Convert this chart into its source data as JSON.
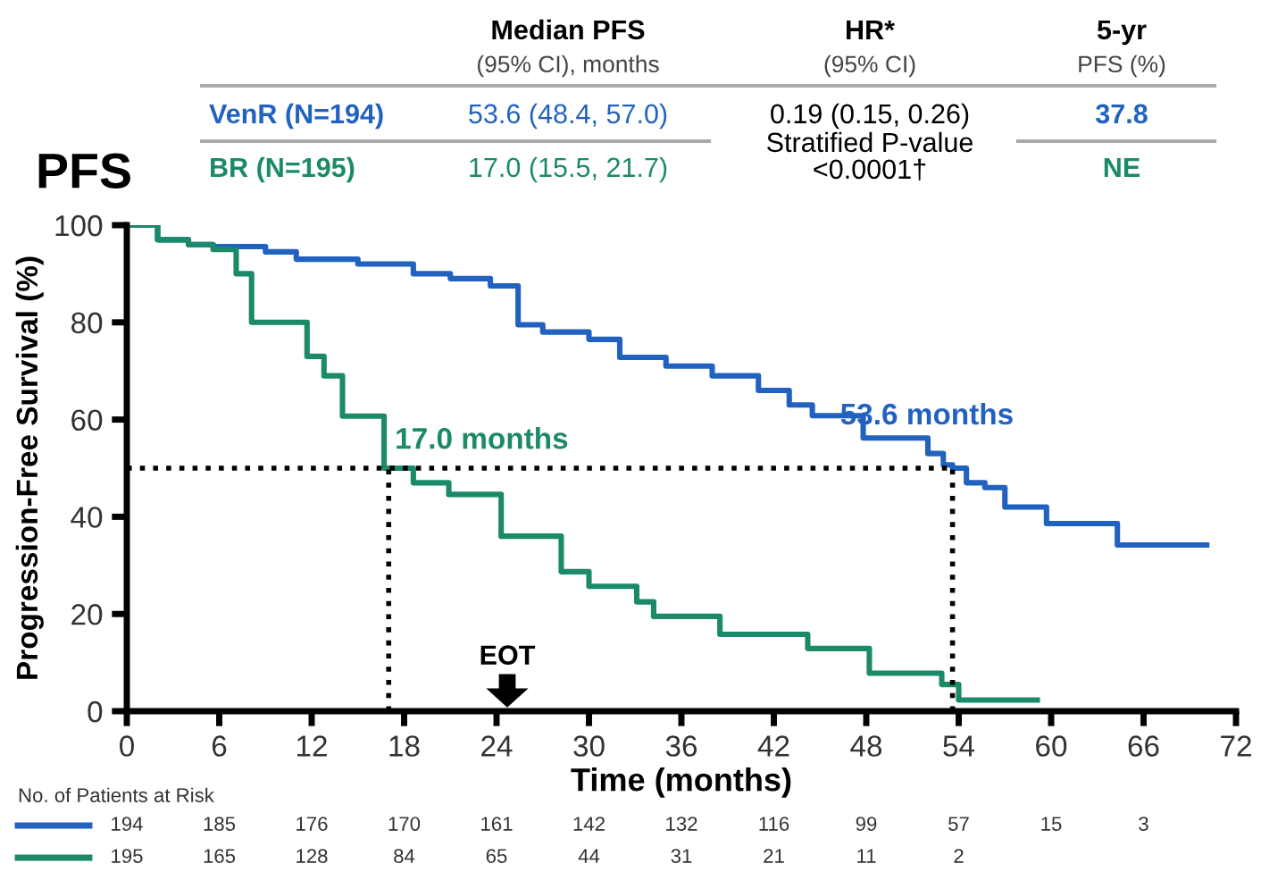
{
  "chart_data": {
    "type": "step",
    "title": "PFS",
    "xlabel": "Time (months)",
    "ylabel": "Progression-Free Survival (%)",
    "xlim": [
      0,
      72
    ],
    "xticks": [
      0,
      6,
      12,
      18,
      24,
      30,
      36,
      42,
      48,
      54,
      60,
      66,
      72
    ],
    "ylim": [
      0,
      100
    ],
    "yticks": [
      0,
      20,
      40,
      60,
      80,
      100
    ],
    "grid": false,
    "legend": false,
    "series": [
      {
        "name": "VenR (N=194)",
        "color": "#2162c0",
        "x": [
          0,
          2,
          4,
          5.6,
          9,
          11,
          15,
          18.6,
          21,
          23.6,
          25.4,
          27,
          30,
          32,
          35,
          38,
          41,
          43,
          44.5,
          47.8,
          52,
          53,
          53.6,
          54.5,
          55.7,
          57,
          59.7,
          64.3,
          70.1
        ],
        "values": [
          100,
          97,
          96,
          95.6,
          94.5,
          93,
          92,
          90,
          89,
          87.5,
          79.5,
          78,
          76.5,
          72.8,
          71,
          69,
          66,
          63,
          60.8,
          56.2,
          53,
          50.7,
          50,
          47,
          46,
          42,
          38.6,
          34.2,
          34.2
        ]
      },
      {
        "name": "BR (N=195)",
        "color": "#1b8a68",
        "x": [
          0,
          2,
          4,
          5.6,
          7.1,
          8.1,
          9,
          11.7,
          12.8,
          14,
          16.7,
          18.6,
          20.9,
          24.3,
          28.2,
          30,
          33.1,
          34.2,
          38.5,
          44.2,
          46.5,
          48.2,
          51.8,
          52.9,
          54,
          59.1
        ],
        "values": [
          100,
          97,
          96,
          95,
          90,
          80,
          80,
          73,
          69,
          60.7,
          50,
          47,
          44.6,
          36,
          28.7,
          25.7,
          22.5,
          19.5,
          15.8,
          12.9,
          12.9,
          7.8,
          7.8,
          5.5,
          2.3,
          2.3
        ]
      }
    ],
    "ref_lines": [
      {
        "axis": "y",
        "value": 50,
        "color": "#000000",
        "line_style": "dotted"
      },
      {
        "axis": "x",
        "value": 17,
        "color": "#000000",
        "line_style": "dotted"
      },
      {
        "axis": "x",
        "value": 53.6,
        "color": "#000000",
        "line_style": "dotted"
      }
    ],
    "annotations": [
      "Median PFS",
      "(95% CI), months",
      "HR*",
      "(95% CI)",
      "5-yr",
      "PFS (%)",
      "53.6 (48.4, 57.0)",
      "17.0 (15.5, 21.7)",
      "0.19 (0.15, 0.26)",
      "Stratified P-value",
      "<0.0001†",
      "37.8",
      "NE",
      "No. of Patients at Risk",
      "EOT",
      "194",
      "185",
      "176",
      "170",
      "161",
      "142",
      "132",
      "116",
      "99",
      "57",
      "15",
      "3",
      "195",
      "165",
      "128",
      "84",
      "65",
      "44",
      "31",
      "21",
      "11",
      "2",
      {
        "text": "17.0 months",
        "x": 17,
        "y": 50
      },
      {
        "text": "53.6 months",
        "x": 53.6,
        "y": 50
      }
    ]
  }
}
